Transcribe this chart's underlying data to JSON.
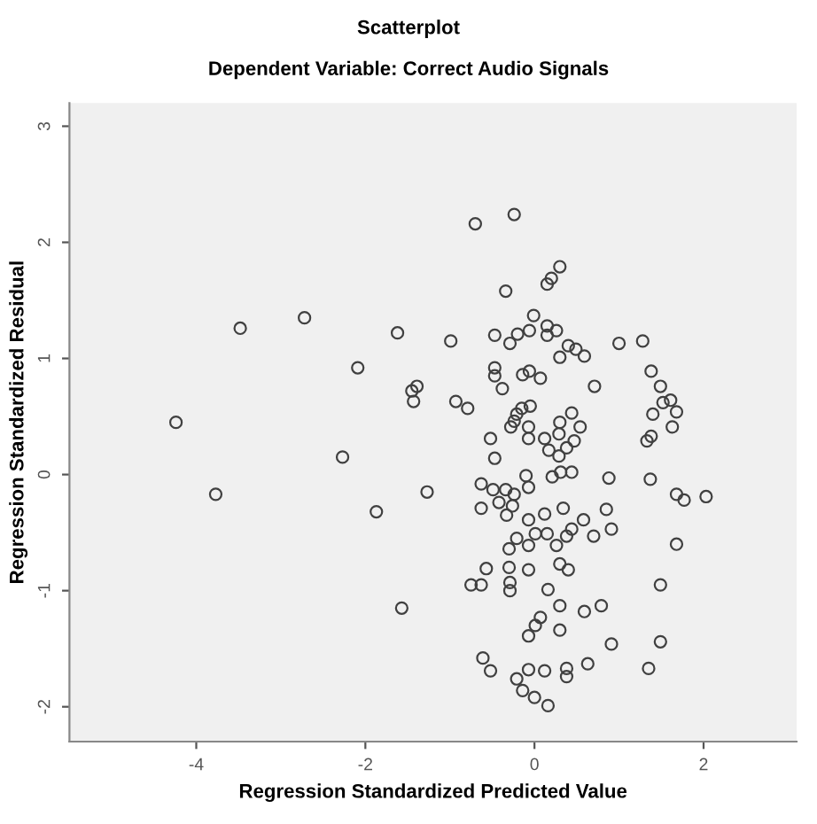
{
  "chart_data": {
    "type": "scatter",
    "title": "Scatterplot",
    "subtitle": "Dependent Variable: Correct Audio Signals",
    "xlabel": "Regression Standardized Predicted Value",
    "ylabel": "Regression Standardized Residual",
    "xlim": [
      -5.5,
      3.1
    ],
    "ylim": [
      -2.3,
      3.2
    ],
    "xticks": [
      -4,
      -2,
      0,
      2
    ],
    "yticks": [
      -2,
      -1,
      0,
      1,
      2,
      3
    ],
    "grid": false,
    "legend": false,
    "marker": "circle",
    "series": [
      {
        "color": "#404040",
        "x": [
          -4.24,
          -3.77,
          -3.48,
          -2.72,
          -2.09,
          -2.27,
          -1.87,
          -1.62,
          -1.45,
          -1.39,
          -1.43,
          -1.27,
          -1.57,
          -0.7,
          -0.24,
          0.3,
          0.2,
          0.15,
          -0.34,
          -0.01,
          -0.99,
          -0.47,
          -0.29,
          -0.2,
          -0.06,
          0.15,
          0.15,
          0.26,
          0.3,
          0.4,
          0.49,
          0.59,
          1.0,
          1.28,
          -0.47,
          -0.47,
          -0.38,
          -0.14,
          -0.06,
          0.07,
          0.71,
          1.38,
          1.49,
          1.52,
          1.61,
          1.68,
          1.4,
          1.63,
          1.33,
          1.38,
          -0.93,
          -0.79,
          -0.05,
          -0.15,
          -0.21,
          -0.24,
          -0.28,
          -0.07,
          -0.07,
          -0.52,
          -0.47,
          0.44,
          0.54,
          0.3,
          0.47,
          0.29,
          0.12,
          0.17,
          0.29,
          0.38,
          0.21,
          0.31,
          0.44,
          -0.1,
          -0.07,
          0.88,
          1.37,
          1.68,
          1.77,
          2.03,
          -0.63,
          -0.49,
          -0.34,
          -0.24,
          -0.42,
          -0.26,
          -0.63,
          -0.33,
          -0.07,
          0.12,
          0.34,
          0.85,
          0.91,
          0.58,
          0.44,
          0.38,
          0.7,
          0.01,
          0.15,
          0.26,
          -0.07,
          -0.21,
          -0.3,
          1.68,
          -0.57,
          -0.75,
          -0.63,
          -0.3,
          -0.29,
          -0.29,
          -0.07,
          0.3,
          0.4,
          0.16,
          1.49,
          0.3,
          0.59,
          0.79,
          0.07,
          0.01,
          -0.07,
          0.3,
          0.91,
          1.49,
          -0.61,
          -0.52,
          -0.21,
          -0.07,
          0.12,
          0.38,
          0.38,
          0.63,
          1.35,
          -0.14,
          0.0,
          0.16
        ],
        "values": [
          0.45,
          -0.17,
          1.26,
          1.35,
          0.92,
          0.15,
          -0.32,
          1.22,
          0.72,
          0.76,
          0.63,
          -0.15,
          -1.15,
          2.16,
          2.24,
          1.79,
          1.69,
          1.64,
          1.58,
          1.37,
          1.15,
          1.2,
          1.13,
          1.21,
          1.24,
          1.28,
          1.2,
          1.24,
          1.01,
          1.11,
          1.08,
          1.02,
          1.13,
          1.15,
          0.92,
          0.85,
          0.74,
          0.86,
          0.89,
          0.83,
          0.76,
          0.89,
          0.76,
          0.62,
          0.64,
          0.54,
          0.52,
          0.41,
          0.29,
          0.33,
          0.63,
          0.57,
          0.59,
          0.57,
          0.52,
          0.46,
          0.41,
          0.41,
          0.31,
          0.31,
          0.14,
          0.53,
          0.41,
          0.45,
          0.29,
          0.35,
          0.31,
          0.21,
          0.16,
          0.23,
          -0.02,
          0.02,
          0.02,
          -0.01,
          -0.11,
          -0.03,
          -0.04,
          -0.17,
          -0.22,
          -0.19,
          -0.08,
          -0.13,
          -0.13,
          -0.17,
          -0.24,
          -0.27,
          -0.29,
          -0.35,
          -0.39,
          -0.34,
          -0.29,
          -0.3,
          -0.47,
          -0.39,
          -0.47,
          -0.53,
          -0.53,
          -0.51,
          -0.51,
          -0.61,
          -0.61,
          -0.55,
          -0.64,
          -0.6,
          -0.81,
          -0.95,
          -0.95,
          -0.8,
          -0.93,
          -1.0,
          -0.82,
          -0.77,
          -0.82,
          -0.99,
          -0.95,
          -1.13,
          -1.18,
          -1.13,
          -1.23,
          -1.3,
          -1.39,
          -1.34,
          -1.46,
          -1.44,
          -1.58,
          -1.69,
          -1.76,
          -1.68,
          -1.69,
          -1.67,
          -1.74,
          -1.63,
          -1.67,
          -1.86,
          -1.92,
          -1.99
        ]
      }
    ]
  }
}
